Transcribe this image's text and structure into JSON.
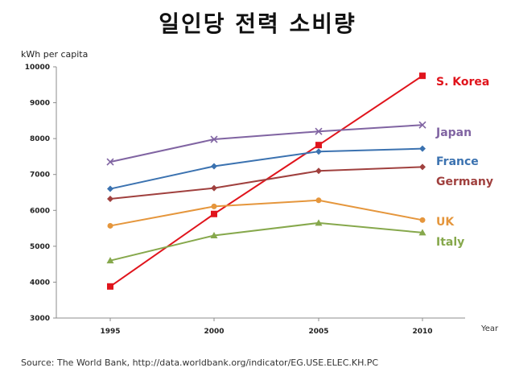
{
  "chart_data": {
    "type": "line",
    "title": "일인당 전력 소비량",
    "ylabel": "kWh per capita",
    "xlabel": "Year",
    "x": [
      "1995",
      "2000",
      "2005",
      "2010"
    ],
    "ylim": [
      3000,
      10000
    ],
    "yticks": [
      "10000",
      "9000",
      "8000",
      "7000",
      "6000",
      "5000",
      "4000",
      "3000"
    ],
    "series": [
      {
        "name": "S. Korea",
        "color": "#e0141c",
        "marker": "square",
        "values": [
          3880,
          5900,
          7820,
          9750
        ]
      },
      {
        "name": "Japan",
        "color": "#8064a2",
        "marker": "x",
        "values": [
          7350,
          7980,
          8200,
          8380
        ]
      },
      {
        "name": "France",
        "color": "#3b72b0",
        "marker": "diamond",
        "values": [
          6600,
          7230,
          7640,
          7720
        ]
      },
      {
        "name": "Germany",
        "color": "#a0403e",
        "marker": "diamond",
        "values": [
          6320,
          6620,
          7100,
          7210
        ]
      },
      {
        "name": "UK",
        "color": "#e5963c",
        "marker": "circle",
        "values": [
          5570,
          6110,
          6280,
          5730
        ]
      },
      {
        "name": "Italy",
        "color": "#86a84c",
        "marker": "triangle",
        "values": [
          4600,
          5300,
          5650,
          5380
        ]
      }
    ],
    "legend": "right",
    "grid": false
  },
  "source": "Source: The World Bank, http://data.worldbank.org/indicator/EG.USE.ELEC.KH.PC"
}
